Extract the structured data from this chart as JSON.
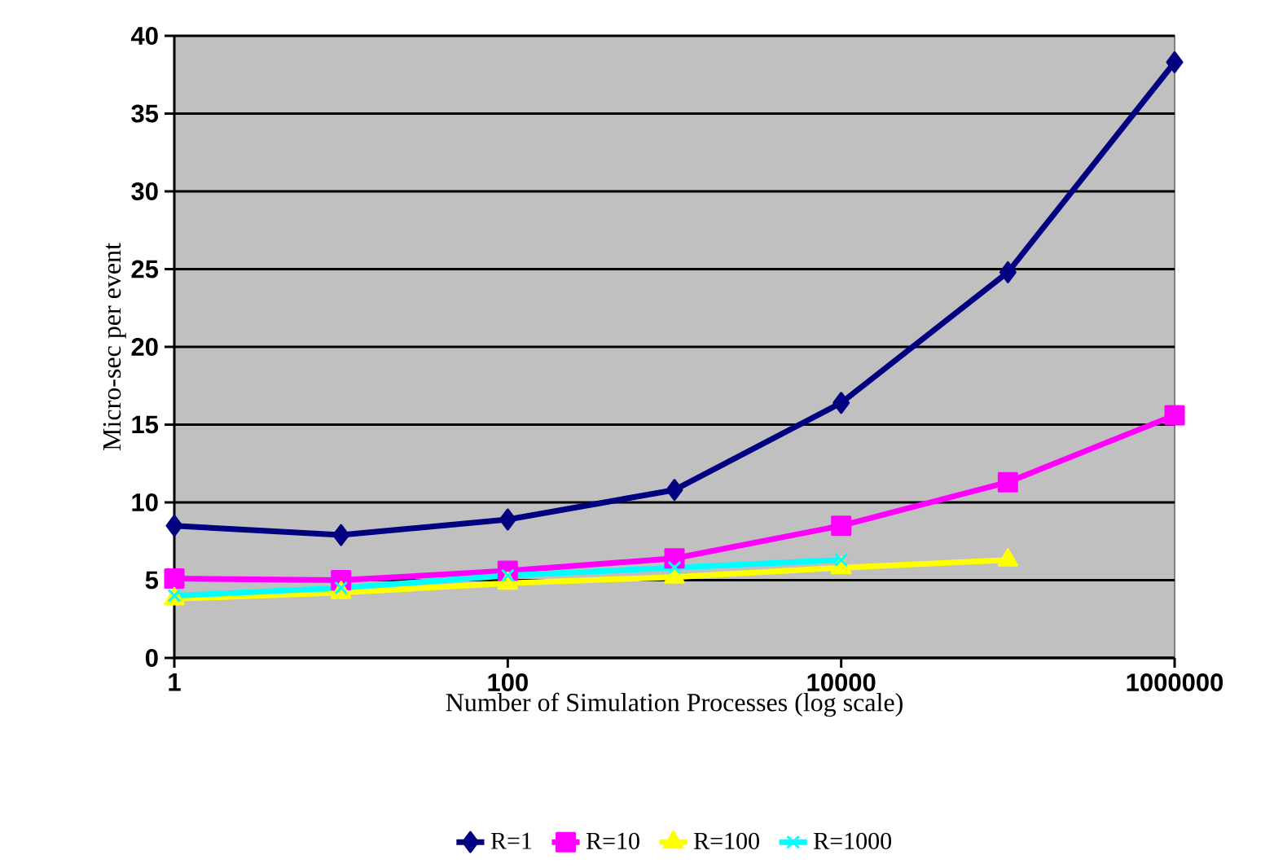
{
  "chart_data": {
    "type": "line",
    "xlabel": "Number of Simulation Processes (log scale)",
    "ylabel": "Micro-sec per event",
    "log": "x",
    "x": [
      1,
      10,
      100,
      1000,
      10000,
      100000,
      1000000
    ],
    "xlim": [
      1,
      1000000
    ],
    "xticks": [
      1,
      100,
      10000,
      1000000
    ],
    "ylim": [
      0,
      40
    ],
    "yticks": [
      0,
      5,
      10,
      15,
      20,
      25,
      30,
      35,
      40
    ],
    "grid": "y",
    "legend": "bottom",
    "series": [
      {
        "name": "R=1",
        "color": "#000080",
        "marker": "diamond",
        "values": [
          8.5,
          7.9,
          8.9,
          10.8,
          16.4,
          24.8,
          38.3
        ]
      },
      {
        "name": "R=10",
        "color": "#ff00ff",
        "marker": "square",
        "values": [
          5.1,
          5.0,
          5.6,
          6.4,
          8.5,
          11.3,
          15.6
        ]
      },
      {
        "name": "R=100",
        "color": "#ffff00",
        "marker": "triangle",
        "values": [
          3.8,
          4.2,
          4.8,
          5.2,
          5.8,
          6.3,
          null
        ]
      },
      {
        "name": "R=1000",
        "color": "#00ffff",
        "marker": "cross",
        "values": [
          4.0,
          4.5,
          5.3,
          5.8,
          6.3,
          null,
          null
        ]
      }
    ]
  }
}
